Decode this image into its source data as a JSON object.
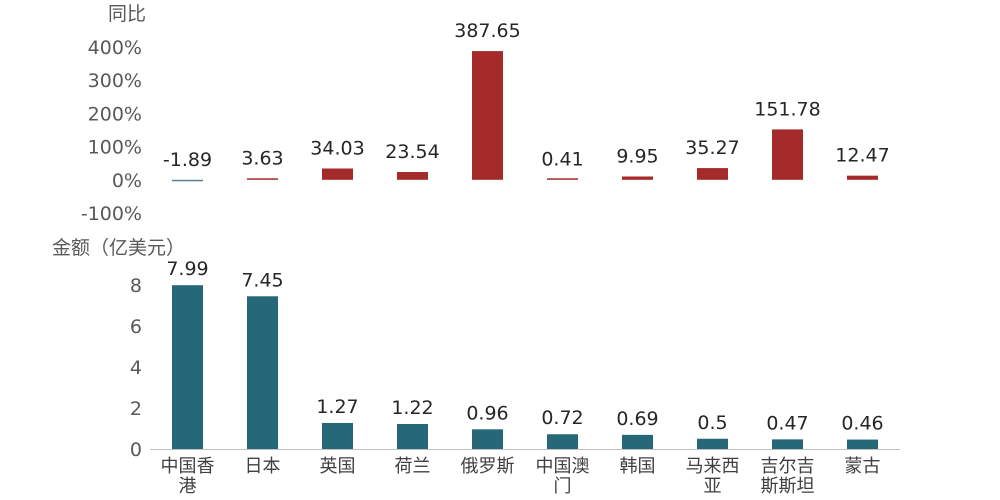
{
  "chart_data": [
    {
      "type": "bar",
      "ylabel": "同比",
      "yticks": [
        "400%",
        "300%",
        "200%",
        "100%",
        "0%",
        "-100%"
      ],
      "ylim": [
        -100,
        400
      ],
      "color": "#A52A2A",
      "categories": [
        "中国香港",
        "日本",
        "英国",
        "荷兰",
        "俄罗斯",
        "中国澳门",
        "韩国",
        "马来西亚",
        "吉尔吉斯斯坦",
        "蒙古"
      ],
      "values": [
        -1.89,
        3.63,
        34.03,
        23.54,
        387.65,
        0.41,
        9.95,
        35.27,
        151.78,
        12.47
      ],
      "value_labels": [
        "-1.89",
        "3.63",
        "34.03",
        "23.54",
        "387.65",
        "0.41",
        "9.95",
        "35.27",
        "151.78",
        "12.47"
      ]
    },
    {
      "type": "bar",
      "ylabel": "金额（亿美元）",
      "yticks": [
        "8",
        "6",
        "4",
        "2",
        "0"
      ],
      "ylim": [
        0,
        8
      ],
      "color": "#276878",
      "categories": [
        "中国香港",
        "日本",
        "英国",
        "荷兰",
        "俄罗斯",
        "中国澳门",
        "韩国",
        "马来西亚",
        "吉尔吉斯斯坦",
        "蒙古"
      ],
      "category_lines": [
        [
          "中国香",
          "港"
        ],
        [
          "日本"
        ],
        [
          "英国"
        ],
        [
          "荷兰"
        ],
        [
          "俄罗斯"
        ],
        [
          "中国澳",
          "门"
        ],
        [
          "韩国"
        ],
        [
          "马来西",
          "亚"
        ],
        [
          "吉尔吉",
          "斯斯坦"
        ],
        [
          "蒙古"
        ]
      ],
      "values": [
        7.99,
        7.45,
        1.27,
        1.22,
        0.96,
        0.72,
        0.69,
        0.5,
        0.47,
        0.46
      ],
      "value_labels": [
        "7.99",
        "7.45",
        "1.27",
        "1.22",
        "0.96",
        "0.72",
        "0.69",
        "0.5",
        "0.47",
        "0.46"
      ]
    }
  ],
  "colors": {
    "axis_line": "#BFBFBF"
  }
}
